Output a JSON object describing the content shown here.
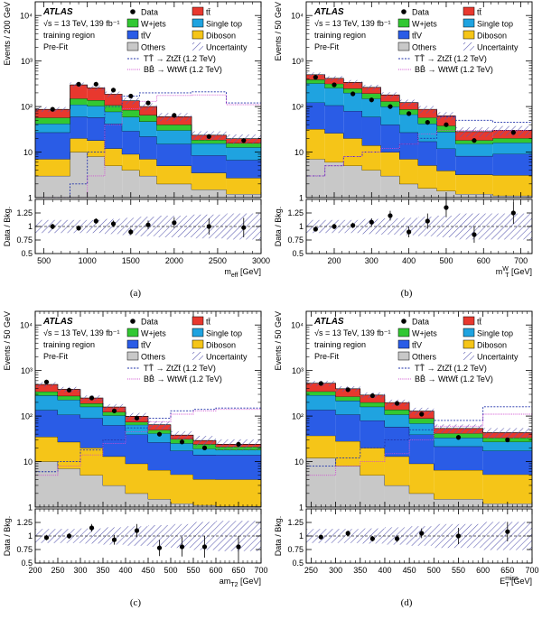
{
  "figure": {
    "legend": {
      "atlas": "ATLAS",
      "energy": "√s = 13 TeV, 139 fb⁻¹",
      "region": "training region",
      "fit": "Pre-Fit",
      "data_label": "Data",
      "entries": [
        {
          "key": "ttbar",
          "label": "tt̄",
          "color": "#e8382e"
        },
        {
          "key": "wjets",
          "label": "W+jets",
          "color": "#32c832"
        },
        {
          "key": "singletop",
          "label": "Single top",
          "color": "#1fa3e0"
        },
        {
          "key": "ttv",
          "label": "tt̄V",
          "color": "#2a5ce6"
        },
        {
          "key": "diboson",
          "label": "Diboson",
          "color": "#f5c518"
        },
        {
          "key": "others",
          "label": "Others",
          "color": "#c8c8c8"
        },
        {
          "key": "unc",
          "label": "Uncertainty",
          "color": "#6a6ab8"
        }
      ],
      "signals": [
        {
          "label": "TT̄ → ZtZt̄ (1.2 TeV)",
          "color": "#2233aa"
        },
        {
          "label": "BB̄ → WtWt̄ (1.2 TeV)",
          "color": "#d04bd0"
        }
      ]
    },
    "ratio_ylabel": "Data / Bkg.",
    "ratio_ticks": [
      "1.25",
      "1",
      "0.75",
      "0.5"
    ],
    "log_ticks": [
      "10⁴",
      "10³",
      "10²",
      "10",
      "1"
    ]
  },
  "chart_data": [
    {
      "type": "bar",
      "caption": "(a)",
      "ylabel": "Events / 200 GeV",
      "xlabel": "m_eff [GeV]",
      "xlabel_main": "m",
      "xlabel_sub": "eff",
      "xlabel_sup": "",
      "xlabel_unit": " [GeV]",
      "xlim": [
        400,
        3000
      ],
      "ylim": [
        1,
        20000
      ],
      "xticks": [
        500,
        1000,
        1500,
        2000,
        2500,
        3000
      ],
      "bins": [
        400,
        800,
        1000,
        1200,
        1400,
        1600,
        1800,
        2200,
        2600,
        3000
      ],
      "stack": {
        "others": [
          3,
          10,
          8,
          5,
          4,
          3,
          2,
          1.5,
          1.2
        ],
        "diboson": [
          4,
          10,
          10,
          7,
          5,
          4,
          3,
          2,
          1.5
        ],
        "ttv": [
          20,
          40,
          40,
          30,
          20,
          15,
          10,
          5,
          4
        ],
        "singletop": [
          15,
          50,
          45,
          35,
          30,
          25,
          15,
          7,
          6
        ],
        "wjets": [
          15,
          40,
          35,
          30,
          25,
          18,
          10,
          3,
          3
        ],
        "ttbar": [
          30,
          150,
          120,
          80,
          50,
          35,
          20,
          5,
          4
        ]
      },
      "signal_tt": [
        0.5,
        2,
        10,
        100,
        170,
        200,
        200,
        210,
        120
      ],
      "signal_bb": [
        0.5,
        1,
        3,
        40,
        90,
        130,
        175,
        180,
        110
      ],
      "data_x": [
        600,
        900,
        1100,
        1300,
        1500,
        1700,
        2000,
        2400,
        2800
      ],
      "data_y": [
        87,
        310,
        310,
        230,
        170,
        120,
        64,
        22,
        18
      ],
      "ratio": [
        1.0,
        0.97,
        1.1,
        1.05,
        0.9,
        1.03,
        1.07,
        1.0,
        0.98
      ],
      "ratio_err": [
        0.05,
        0.05,
        0.05,
        0.06,
        0.06,
        0.08,
        0.1,
        0.15,
        0.18
      ],
      "unc": [
        0.12,
        0.12,
        0.12,
        0.14,
        0.16,
        0.18,
        0.2,
        0.22,
        0.24
      ]
    },
    {
      "type": "bar",
      "caption": "(b)",
      "ylabel": "Events / 50 GeV",
      "xlabel": "m_T^W [GeV]",
      "xlabel_main": "m",
      "xlabel_sub": "T",
      "xlabel_sup": "W",
      "xlabel_unit": " [GeV]",
      "xlim": [
        125,
        730
      ],
      "ylim": [
        1,
        20000
      ],
      "xticks": [
        200,
        300,
        400,
        500,
        600,
        700
      ],
      "bins": [
        125,
        175,
        225,
        275,
        325,
        375,
        425,
        475,
        525,
        625,
        730
      ],
      "stack": {
        "others": [
          7,
          6,
          5,
          4,
          3,
          2,
          1.6,
          1.4,
          1.2,
          1.1
        ],
        "diboson": [
          25,
          20,
          15,
          10,
          7,
          5,
          3.5,
          2.5,
          2,
          2
        ],
        "ttv": [
          90,
          80,
          60,
          45,
          30,
          20,
          12,
          8,
          5,
          6
        ],
        "singletop": [
          200,
          150,
          120,
          90,
          60,
          40,
          25,
          16,
          7,
          7
        ],
        "wjets": [
          70,
          60,
          50,
          45,
          30,
          20,
          15,
          10,
          3,
          4
        ],
        "ttbar": [
          110,
          100,
          90,
          70,
          50,
          35,
          30,
          25,
          10,
          10
        ]
      },
      "signal_tt": [
        3,
        5,
        8,
        10,
        10,
        15,
        20,
        60,
        50,
        45
      ],
      "signal_bb": [
        3,
        5,
        8,
        10,
        12,
        15,
        25,
        30,
        30,
        30
      ],
      "data_x": [
        150,
        200,
        250,
        300,
        350,
        400,
        450,
        500,
        575,
        680
      ],
      "data_y": [
        440,
        300,
        190,
        140,
        100,
        70,
        45,
        40,
        18,
        27
      ],
      "ratio": [
        0.95,
        1.0,
        1.02,
        1.08,
        1.2,
        0.9,
        1.1,
        1.35,
        0.85,
        1.25
      ],
      "ratio_err": [
        0.04,
        0.05,
        0.05,
        0.07,
        0.09,
        0.1,
        0.14,
        0.18,
        0.15,
        0.2
      ],
      "unc": [
        0.12,
        0.12,
        0.12,
        0.14,
        0.15,
        0.16,
        0.18,
        0.2,
        0.24,
        0.24
      ]
    },
    {
      "type": "bar",
      "caption": "(c)",
      "ylabel": "Events / 50 GeV",
      "xlabel": "am_T2 [GeV]",
      "xlabel_main": "am",
      "xlabel_sub": "T2",
      "xlabel_sup": "",
      "xlabel_unit": " [GeV]",
      "xlim": [
        200,
        700
      ],
      "ylim": [
        1,
        20000
      ],
      "xticks": [
        200,
        250,
        300,
        350,
        400,
        450,
        500,
        550,
        600,
        650,
        700
      ],
      "bins": [
        200,
        250,
        300,
        350,
        400,
        450,
        500,
        550,
        600,
        700
      ],
      "stack": {
        "others": [
          10,
          7,
          5,
          3,
          2,
          1.5,
          1.2,
          1.1,
          1.05
        ],
        "diboson": [
          25,
          20,
          15,
          10,
          7,
          5,
          4,
          3,
          3
        ],
        "ttv": [
          100,
          80,
          70,
          50,
          30,
          20,
          12,
          10,
          10
        ],
        "singletop": [
          150,
          120,
          70,
          40,
          25,
          15,
          8,
          5,
          4
        ],
        "wjets": [
          60,
          50,
          30,
          20,
          10,
          8,
          6,
          5,
          3
        ],
        "ttbar": [
          150,
          110,
          60,
          35,
          25,
          15,
          7,
          5,
          3
        ]
      },
      "signal_tt": [
        6,
        10,
        18,
        30,
        55,
        90,
        130,
        140,
        150
      ],
      "signal_bb": [
        5,
        8,
        14,
        25,
        45,
        75,
        110,
        130,
        140
      ],
      "data_x": [
        225,
        275,
        325,
        375,
        425,
        475,
        525,
        575,
        650
      ],
      "data_y": [
        560,
        370,
        250,
        130,
        90,
        40,
        27,
        20,
        24
      ],
      "ratio": [
        0.97,
        1.0,
        1.15,
        0.93,
        1.1,
        0.78,
        0.8,
        0.8,
        0.8
      ],
      "ratio_err": [
        0.05,
        0.05,
        0.07,
        0.09,
        0.12,
        0.15,
        0.18,
        0.2,
        0.2
      ],
      "unc": [
        0.13,
        0.13,
        0.14,
        0.16,
        0.18,
        0.2,
        0.22,
        0.26,
        0.28
      ]
    },
    {
      "type": "bar",
      "caption": "(d)",
      "ylabel": "Events / 50 GeV",
      "xlabel": "E_T^miss [GeV]",
      "xlabel_main": "E",
      "xlabel_sub": "T",
      "xlabel_sup": "miss",
      "xlabel_unit": " [GeV]",
      "xlim": [
        240,
        700
      ],
      "ylim": [
        1,
        20000
      ],
      "xticks": [
        250,
        300,
        350,
        400,
        450,
        500,
        550,
        600,
        650,
        700
      ],
      "bins": [
        240,
        300,
        350,
        400,
        450,
        500,
        600,
        700
      ],
      "stack": {
        "others": [
          12,
          8,
          5,
          3,
          2,
          1.5,
          1.2
        ],
        "diboson": [
          25,
          20,
          15,
          10,
          7,
          5,
          4
        ],
        "ttv": [
          100,
          80,
          60,
          45,
          30,
          15,
          12
        ],
        "singletop": [
          150,
          110,
          80,
          50,
          30,
          12,
          10
        ],
        "wjets": [
          60,
          50,
          40,
          30,
          20,
          8,
          6
        ],
        "ttbar": [
          180,
          130,
          90,
          60,
          40,
          12,
          10
        ]
      },
      "signal_tt": [
        8,
        12,
        20,
        30,
        50,
        80,
        160
      ],
      "signal_bb": [
        5,
        8,
        10,
        15,
        30,
        60,
        110
      ],
      "data_x": [
        270,
        325,
        375,
        425,
        475,
        550,
        650
      ],
      "data_y": [
        520,
        380,
        280,
        190,
        110,
        34,
        30
      ],
      "ratio": [
        0.98,
        1.05,
        0.95,
        0.95,
        1.05,
        1.0,
        1.08
      ],
      "ratio_err": [
        0.04,
        0.05,
        0.05,
        0.06,
        0.09,
        0.15,
        0.18
      ],
      "unc": [
        0.13,
        0.13,
        0.14,
        0.16,
        0.18,
        0.22,
        0.26
      ]
    }
  ]
}
